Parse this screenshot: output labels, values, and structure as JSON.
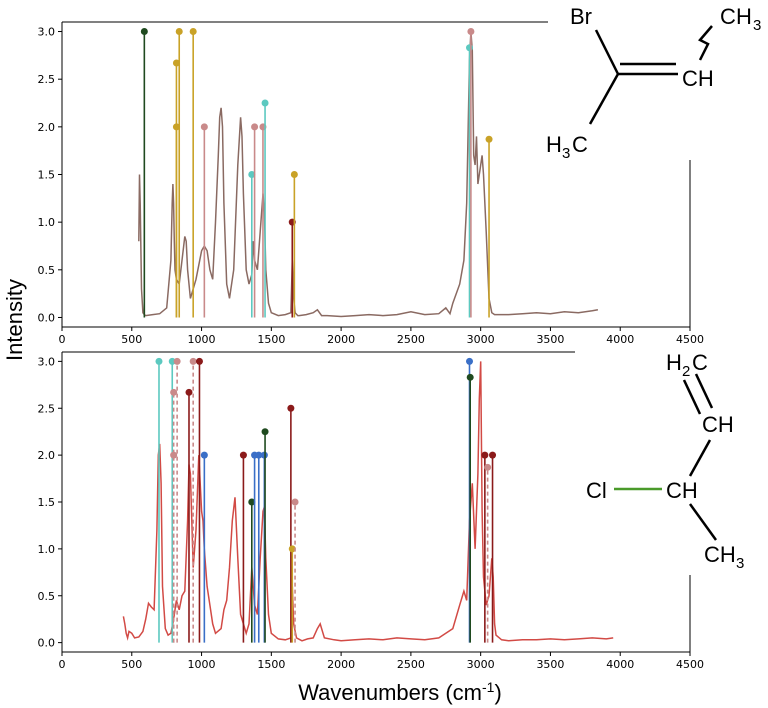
{
  "chart_data": [
    {
      "type": "line",
      "panel": "top",
      "xlim": [
        0,
        4500
      ],
      "ylim": [
        -0.1,
        3.1
      ],
      "xticks": [
        0,
        500,
        1000,
        1500,
        2000,
        2500,
        3000,
        3500,
        4000,
        4500
      ],
      "yticks": [
        "0.0",
        "0.5",
        "1.0",
        "1.5",
        "2.0",
        "2.5",
        "3.0"
      ],
      "xtick_labels": [
        "0",
        "500",
        "1000",
        "1500",
        "2000",
        "2500",
        "3000",
        "3500",
        "4000",
        "4500"
      ],
      "grid": false,
      "spectrum": {
        "color": "#8a6a62",
        "x": [
          550,
          555,
          560,
          570,
          580,
          590,
          600,
          650,
          700,
          750,
          780,
          790,
          795,
          800,
          805,
          810,
          820,
          840,
          860,
          880,
          890,
          900,
          920,
          960,
          1000,
          1020,
          1040,
          1060,
          1080,
          1100,
          1120,
          1130,
          1140,
          1150,
          1160,
          1180,
          1200,
          1230,
          1260,
          1280,
          1290,
          1300,
          1320,
          1340,
          1360,
          1370,
          1380,
          1400,
          1420,
          1440,
          1450,
          1460,
          1480,
          1500,
          1550,
          1600,
          1640,
          1650,
          1660,
          1670,
          1690,
          1700,
          1750,
          1800,
          1830,
          1860,
          1900,
          2000,
          2100,
          2200,
          2300,
          2400,
          2500,
          2600,
          2700,
          2750,
          2780,
          2800,
          2850,
          2880,
          2900,
          2920,
          2930,
          2940,
          2950,
          2960,
          2970,
          2980,
          3000,
          3010,
          3020,
          3040,
          3060,
          3080,
          3100,
          3200,
          3300,
          3400,
          3500,
          3600,
          3700,
          3800,
          3840
        ],
        "y": [
          0.8,
          1.5,
          1.2,
          0.3,
          0.05,
          0.03,
          0.02,
          0.03,
          0.04,
          0.1,
          0.6,
          1.2,
          1.4,
          1.2,
          0.8,
          0.5,
          0.4,
          0.35,
          0.6,
          0.85,
          0.8,
          0.5,
          0.2,
          0.4,
          0.7,
          0.75,
          0.7,
          0.5,
          0.4,
          1.0,
          1.7,
          2.1,
          2.2,
          2.0,
          1.2,
          0.35,
          0.2,
          0.5,
          1.6,
          2.1,
          1.9,
          1.3,
          0.5,
          0.35,
          0.45,
          0.8,
          0.6,
          0.5,
          0.9,
          1.3,
          1.1,
          0.5,
          0.15,
          0.05,
          0.02,
          0.03,
          0.05,
          0.6,
          0.2,
          0.05,
          0.02,
          0.02,
          0.03,
          0.05,
          0.08,
          0.02,
          0.02,
          0.01,
          0.02,
          0.03,
          0.02,
          0.03,
          0.06,
          0.03,
          0.04,
          0.1,
          0.04,
          0.15,
          0.35,
          0.6,
          1.2,
          2.7,
          3.0,
          2.8,
          1.7,
          1.6,
          1.9,
          1.4,
          1.6,
          1.7,
          1.5,
          0.9,
          0.2,
          0.05,
          0.03,
          0.03,
          0.04,
          0.05,
          0.04,
          0.06,
          0.05,
          0.07,
          0.08
        ]
      },
      "sticks": [
        {
          "x": 590,
          "y": 3.0,
          "color": "#1f4a1f",
          "dashed": false
        },
        {
          "x": 820,
          "y": 2.67,
          "color": "#c9a227",
          "dashed": false
        },
        {
          "x": 820,
          "y": 2.0,
          "color": "#c9a227",
          "dashed": false
        },
        {
          "x": 840,
          "y": 3.0,
          "color": "#c9a227",
          "dashed": false
        },
        {
          "x": 940,
          "y": 3.0,
          "color": "#c9a227",
          "dashed": false
        },
        {
          "x": 1020,
          "y": 2.0,
          "color": "#c98a8a",
          "dashed": false
        },
        {
          "x": 1360,
          "y": 1.5,
          "color": "#5cc9c0",
          "dashed": false
        },
        {
          "x": 1380,
          "y": 2.0,
          "color": "#c98a8a",
          "dashed": false
        },
        {
          "x": 1440,
          "y": 2.0,
          "color": "#c98a8a",
          "dashed": false
        },
        {
          "x": 1455,
          "y": 2.25,
          "color": "#5cc9c0",
          "dashed": false
        },
        {
          "x": 1650,
          "y": 1.0,
          "color": "#8b1a1a",
          "dashed": false
        },
        {
          "x": 1665,
          "y": 1.5,
          "color": "#c9a227",
          "dashed": false
        },
        {
          "x": 2920,
          "y": 2.83,
          "color": "#5cc9c0",
          "dashed": false
        },
        {
          "x": 2930,
          "y": 3.0,
          "color": "#c98a8a",
          "dashed": false
        },
        {
          "x": 3060,
          "y": 1.87,
          "color": "#c9a227",
          "dashed": false
        }
      ],
      "molecule": {
        "atoms": [
          "Br",
          "CH",
          "H",
          "3",
          "C",
          "CH",
          "3"
        ],
        "colors": {
          "Br": "#6b3a3a",
          "bond": "#000000"
        }
      }
    },
    {
      "type": "line",
      "panel": "bottom",
      "xlim": [
        0,
        4500
      ],
      "ylim": [
        -0.1,
        3.1
      ],
      "xticks": [
        0,
        500,
        1000,
        1500,
        2000,
        2500,
        3000,
        3500,
        4000,
        4500
      ],
      "yticks": [
        "0.0",
        "0.5",
        "1.0",
        "1.5",
        "2.0",
        "2.5",
        "3.0"
      ],
      "xtick_labels": [
        "0",
        "500",
        "1000",
        "1500",
        "2000",
        "2500",
        "3000",
        "3500",
        "4000",
        "4500"
      ],
      "grid": false,
      "xlabel_main": "Wavenumbers (cm",
      "xlabel_sup": "-1",
      "xlabel_end": ")",
      "ylabel": "Intensity",
      "spectrum": {
        "color": "#d24a45",
        "x": [
          440,
          450,
          460,
          470,
          480,
          500,
          520,
          550,
          580,
          600,
          620,
          640,
          660,
          680,
          690,
          700,
          710,
          720,
          740,
          760,
          780,
          800,
          820,
          840,
          860,
          880,
          900,
          910,
          920,
          940,
          960,
          980,
          1000,
          1010,
          1020,
          1040,
          1060,
          1080,
          1100,
          1140,
          1160,
          1180,
          1200,
          1220,
          1240,
          1260,
          1280,
          1300,
          1320,
          1340,
          1360,
          1380,
          1400,
          1420,
          1440,
          1450,
          1460,
          1480,
          1500,
          1550,
          1600,
          1640,
          1650,
          1660,
          1680,
          1720,
          1760,
          1800,
          1830,
          1850,
          1880,
          1950,
          2000,
          2100,
          2200,
          2300,
          2400,
          2500,
          2600,
          2700,
          2800,
          2850,
          2880,
          2900,
          2920,
          2940,
          2960,
          2980,
          2990,
          3000,
          3010,
          3020,
          3040,
          3060,
          3080,
          3090,
          3100,
          3110,
          3150,
          3200,
          3300,
          3400,
          3500,
          3600,
          3700,
          3800,
          3900,
          3950
        ],
        "y": [
          0.28,
          0.2,
          0.1,
          0.05,
          0.12,
          0.1,
          0.05,
          0.06,
          0.12,
          0.25,
          0.42,
          0.38,
          0.35,
          1.2,
          2.0,
          2.12,
          1.7,
          0.6,
          0.15,
          0.08,
          0.1,
          0.25,
          0.45,
          0.35,
          0.5,
          0.55,
          1.3,
          1.9,
          1.8,
          0.8,
          1.2,
          2.0,
          1.4,
          1.3,
          1.0,
          0.6,
          0.4,
          0.2,
          0.1,
          0.15,
          0.35,
          0.45,
          0.8,
          1.3,
          1.55,
          0.9,
          0.3,
          0.2,
          0.1,
          0.2,
          0.8,
          0.4,
          0.3,
          0.9,
          1.4,
          1.45,
          0.9,
          0.3,
          0.1,
          0.04,
          0.03,
          0.05,
          0.6,
          0.2,
          0.05,
          0.02,
          0.04,
          0.05,
          0.15,
          0.2,
          0.05,
          0.03,
          0.02,
          0.03,
          0.04,
          0.03,
          0.05,
          0.04,
          0.03,
          0.05,
          0.15,
          0.4,
          0.55,
          0.45,
          1.3,
          1.7,
          1.0,
          1.8,
          2.6,
          3.0,
          1.4,
          0.7,
          0.4,
          0.5,
          0.9,
          0.7,
          0.2,
          0.08,
          0.03,
          0.02,
          0.03,
          0.03,
          0.04,
          0.03,
          0.04,
          0.05,
          0.04,
          0.05
        ]
      },
      "sticks": [
        {
          "x": 695,
          "y": 3.0,
          "color": "#5cc9c0",
          "dashed": false
        },
        {
          "x": 790,
          "y": 3.0,
          "color": "#5cc9c0",
          "dashed": false
        },
        {
          "x": 800,
          "y": 2.67,
          "color": "#c98a8a",
          "dashed": true
        },
        {
          "x": 800,
          "y": 2.0,
          "color": "#c98a8a",
          "dashed": true
        },
        {
          "x": 825,
          "y": 3.0,
          "color": "#c98a8a",
          "dashed": true
        },
        {
          "x": 910,
          "y": 2.67,
          "color": "#8b1a1a",
          "dashed": false
        },
        {
          "x": 940,
          "y": 3.0,
          "color": "#c98a8a",
          "dashed": true
        },
        {
          "x": 985,
          "y": 3.0,
          "color": "#8b1a1a",
          "dashed": false
        },
        {
          "x": 1020,
          "y": 2.0,
          "color": "#3a6fc7",
          "dashed": false
        },
        {
          "x": 1300,
          "y": 2.0,
          "color": "#8b1a1a",
          "dashed": false
        },
        {
          "x": 1360,
          "y": 1.5,
          "color": "#1f4a1f",
          "dashed": false
        },
        {
          "x": 1380,
          "y": 2.0,
          "color": "#3a6fc7",
          "dashed": false
        },
        {
          "x": 1410,
          "y": 2.0,
          "color": "#3a6fc7",
          "dashed": false
        },
        {
          "x": 1450,
          "y": 2.0,
          "color": "#3a6fc7",
          "dashed": false
        },
        {
          "x": 1455,
          "y": 2.25,
          "color": "#1f4a1f",
          "dashed": false
        },
        {
          "x": 1640,
          "y": 2.5,
          "color": "#8b1a1a",
          "dashed": false
        },
        {
          "x": 1650,
          "y": 1.0,
          "color": "#c9a227",
          "dashed": false
        },
        {
          "x": 1670,
          "y": 1.5,
          "color": "#c98a8a",
          "dashed": true
        },
        {
          "x": 2920,
          "y": 3.0,
          "color": "#3a6fc7",
          "dashed": false
        },
        {
          "x": 2925,
          "y": 2.83,
          "color": "#1f4a1f",
          "dashed": false
        },
        {
          "x": 3030,
          "y": 2.0,
          "color": "#8b1a1a",
          "dashed": false
        },
        {
          "x": 3050,
          "y": 1.87,
          "color": "#c98a8a",
          "dashed": true
        },
        {
          "x": 3085,
          "y": 2.0,
          "color": "#8b1a1a",
          "dashed": false
        }
      ],
      "molecule": {
        "atoms": [
          "H",
          "2",
          "C",
          "CH",
          "Cl",
          "CH",
          "CH",
          "3"
        ],
        "colors": {
          "Cl": "#4a9a2a",
          "bond": "#000000"
        }
      }
    }
  ]
}
